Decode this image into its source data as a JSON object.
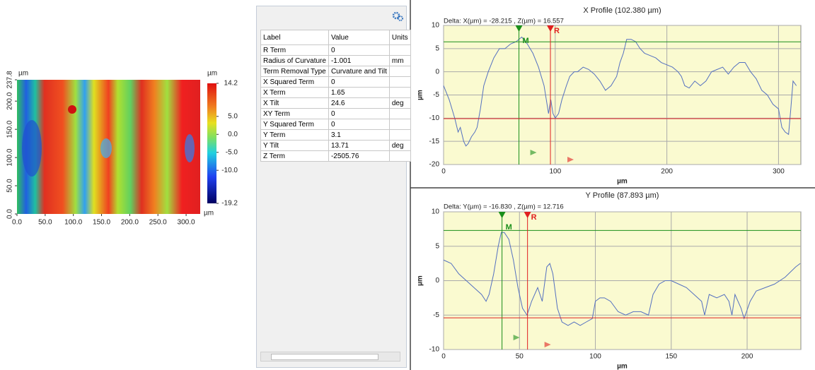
{
  "height_map": {
    "x_unit": "µm",
    "y_unit": "µm",
    "xlim": [
      0,
      325
    ],
    "ylim": [
      0,
      237.8
    ],
    "xticks": [
      {
        "value": 0,
        "label": "0.0"
      },
      {
        "value": 50,
        "label": "50.0"
      },
      {
        "value": 100,
        "label": "100.0"
      },
      {
        "value": 150,
        "label": "150.0"
      },
      {
        "value": 200,
        "label": "200.0"
      },
      {
        "value": 250,
        "label": "250.0"
      },
      {
        "value": 300,
        "label": "300.0"
      }
    ],
    "yticks": [
      {
        "value": 0,
        "label": "0.0"
      },
      {
        "value": 50,
        "label": "50.0"
      },
      {
        "value": 100,
        "label": "100.0"
      },
      {
        "value": 150,
        "label": "150.0"
      },
      {
        "value": 200,
        "label": "200.0"
      },
      237.8
    ],
    "colorbar": {
      "unit": "µm",
      "lim": [
        -19.2,
        14.2
      ],
      "ticks": [
        14.2,
        {
          "value": 5,
          "label": "5.0"
        },
        {
          "value": 0,
          "label": "0.0"
        },
        {
          "value": -5,
          "label": "-5.0"
        },
        {
          "value": -10,
          "label": "-10.0"
        },
        -19.2
      ]
    }
  },
  "table": {
    "header": [
      "Label",
      "Value",
      "Units"
    ],
    "rows": [
      {
        "label": "R Term",
        "value": 0
      },
      {
        "label": "Radius of Curvature",
        "value": -1.001,
        "units": "mm"
      },
      {
        "label": "Term Removal Type",
        "value": "Curvature and Tilt"
      },
      {
        "label": "X Squared Term",
        "value": 0
      },
      {
        "label": "X Term",
        "value": 1.65
      },
      {
        "label": "X Tilt",
        "value": 24.6,
        "units": "deg"
      },
      {
        "label": "XY Term",
        "value": 0
      },
      {
        "label": "Y Squared Term",
        "value": 0
      },
      {
        "label": "Y Term",
        "value": 3.1
      },
      {
        "label": "Y Tilt",
        "value": 13.71,
        "units": "deg"
      },
      {
        "label": "Z Term",
        "value": -2505.76
      }
    ]
  },
  "chart_data": [
    {
      "type": "line",
      "title": "X Profile (102.380 µm)",
      "delta": "Delta:  X(µm) = -28.215 ,  Z(µm) = 16.557",
      "xlabel": "µm",
      "ylabel": "µm",
      "color": "#5470c0",
      "background": "#fafad0",
      "grid": true,
      "xlim": [
        0,
        320
      ],
      "ylim": [
        -20,
        10
      ],
      "xticks": [
        0,
        100,
        200,
        300
      ],
      "yticks": [
        -20,
        -15,
        -10,
        -5,
        0,
        5,
        10
      ],
      "x": [
        0,
        5,
        10,
        13,
        15,
        18,
        20,
        22,
        25,
        28,
        30,
        33,
        36,
        40,
        45,
        50,
        55,
        60,
        65,
        70,
        75,
        80,
        85,
        90,
        92,
        94,
        96,
        98,
        100,
        103,
        106,
        110,
        113,
        117,
        120,
        125,
        130,
        135,
        140,
        145,
        150,
        155,
        158,
        161,
        164,
        168,
        172,
        176,
        180,
        185,
        190,
        195,
        200,
        205,
        210,
        213,
        216,
        220,
        225,
        230,
        235,
        240,
        245,
        250,
        255,
        260,
        265,
        270,
        275,
        280,
        285,
        290,
        295,
        300,
        303,
        306,
        309,
        311,
        313,
        316
      ],
      "values": [
        -3,
        -6,
        -10,
        -13,
        -12,
        -15,
        -16,
        -15.5,
        -14,
        -13,
        -12,
        -8,
        -3,
        0,
        3,
        5,
        5,
        6,
        6.5,
        7.5,
        6,
        4,
        1,
        -3,
        -6,
        -9,
        -6,
        -9,
        -10,
        -9,
        -6,
        -3,
        -1,
        0,
        0,
        1,
        0.5,
        -0.5,
        -2,
        -4,
        -3,
        -1,
        2,
        4,
        7,
        7,
        6.5,
        5,
        4,
        3.5,
        3,
        2,
        1.5,
        1,
        0,
        -1,
        -3,
        -3.5,
        -2,
        -3,
        -2,
        0,
        0.5,
        1,
        -0.5,
        1,
        2,
        2,
        0,
        -1.5,
        -4,
        -5,
        -7,
        -8,
        -12,
        -13,
        -13.5,
        -8,
        -2,
        -3
      ],
      "cursors": [
        {
          "name": "M",
          "x": 67.5,
          "y": 6.46,
          "color": "#1a8f1a"
        },
        {
          "name": "R",
          "x": 95.7,
          "y": -10.1,
          "color": "#e02020"
        }
      ]
    },
    {
      "type": "line",
      "title": "Y Profile (87.893 µm)",
      "delta": "Delta:  Y(µm) = -16.830 ,  Z(µm) = 12.716",
      "xlabel": "µm",
      "ylabel": "µm",
      "color": "#5470c0",
      "background": "#fafad0",
      "grid": true,
      "xlim": [
        0,
        235.4
      ],
      "ylim": [
        -10,
        10
      ],
      "xticks": [
        0,
        50,
        100,
        150,
        200
      ],
      "yticks": [
        -10,
        -5,
        0,
        5,
        10
      ],
      "x": [
        0,
        5,
        10,
        15,
        20,
        25,
        28,
        30,
        33,
        36,
        38,
        40,
        43,
        46,
        49,
        52,
        55,
        58,
        62,
        65,
        68,
        70,
        72,
        75,
        78,
        82,
        86,
        90,
        94,
        98,
        100,
        103,
        106,
        110,
        115,
        120,
        125,
        130,
        135,
        138,
        142,
        146,
        150,
        155,
        160,
        165,
        170,
        172,
        175,
        180,
        185,
        188,
        190,
        192,
        196,
        198,
        202,
        206,
        212,
        218,
        225,
        232,
        235
      ],
      "values": [
        3,
        2.5,
        1,
        0,
        -1,
        -2,
        -3,
        -2,
        1,
        5,
        7,
        7,
        6,
        3,
        -1,
        -4,
        -5,
        -3,
        -1,
        -3,
        2,
        2.5,
        1,
        -4,
        -6,
        -6.5,
        -6,
        -6.5,
        -6,
        -5.5,
        -3,
        -2.5,
        -2.5,
        -3,
        -4.5,
        -5,
        -4.5,
        -4.5,
        -5,
        -2,
        -0.5,
        0,
        0,
        -0.5,
        -1,
        -2,
        -3,
        -5,
        -2,
        -2.5,
        -2,
        -3,
        -5,
        -2,
        -4,
        -5.5,
        -3,
        -1.5,
        -1,
        -0.5,
        0.5,
        2,
        2.5
      ],
      "cursors": [
        {
          "name": "M",
          "x": 38.5,
          "y": 7.3,
          "color": "#1a8f1a"
        },
        {
          "name": "R",
          "x": 55.3,
          "y": -5.4,
          "color": "#e02020"
        }
      ]
    }
  ]
}
